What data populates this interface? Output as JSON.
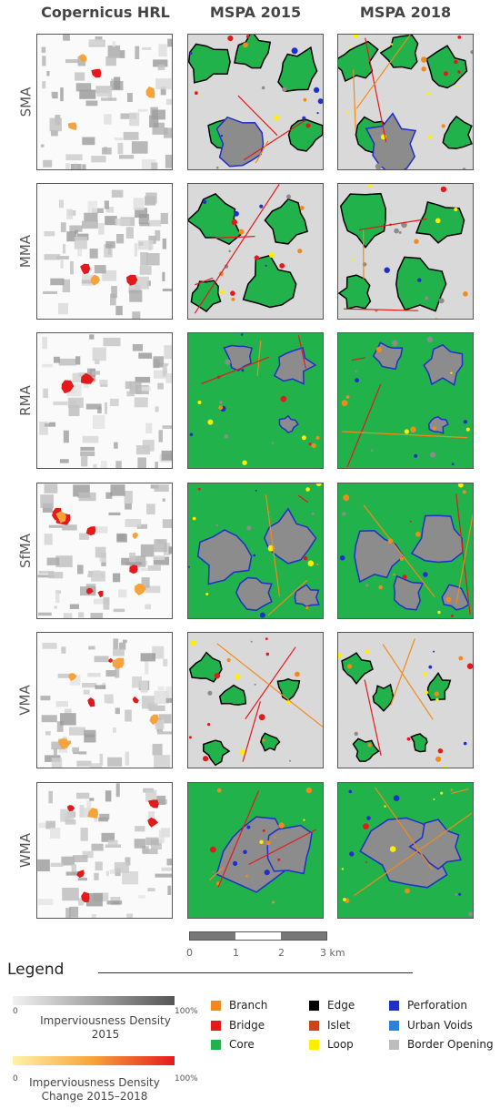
{
  "columns": [
    "Copernicus HRL",
    "MSPA 2015",
    "MSPA 2018"
  ],
  "rows": [
    "SMA",
    "MMA",
    "RMA",
    "SfMA",
    "VMA",
    "WMA"
  ],
  "scale_bar": {
    "labels": [
      "0",
      "1",
      "2",
      "3 km"
    ]
  },
  "legend": {
    "title": "Legend",
    "imperviousness": {
      "min": "0",
      "max": "100%",
      "caption": "Imperviousness Density 2015"
    },
    "change": {
      "min": "0",
      "max": "100%",
      "caption_line1": "Imperviousness Density",
      "caption_line2": "Change 2015–2018"
    },
    "classes": [
      {
        "label": "Branch",
        "color": "#f28a1b"
      },
      {
        "label": "Bridge",
        "color": "#e31a1c"
      },
      {
        "label": "Core",
        "color": "#22b24c"
      },
      {
        "label": "Edge",
        "color": "#000000"
      },
      {
        "label": "Islet",
        "color": "#c8461a"
      },
      {
        "label": "Loop",
        "color": "#ffee00"
      },
      {
        "label": "Perforation",
        "color": "#1f2fc8"
      },
      {
        "label": "Urban Voids",
        "color": "#2f80d8"
      },
      {
        "label": "Border Opening",
        "color": "#bdbdbd"
      }
    ]
  },
  "colors": {
    "core": "#22b24c",
    "urban": "#8c8c8c",
    "opening": "#d9d9d9",
    "perforation": "#1f2fc8"
  }
}
